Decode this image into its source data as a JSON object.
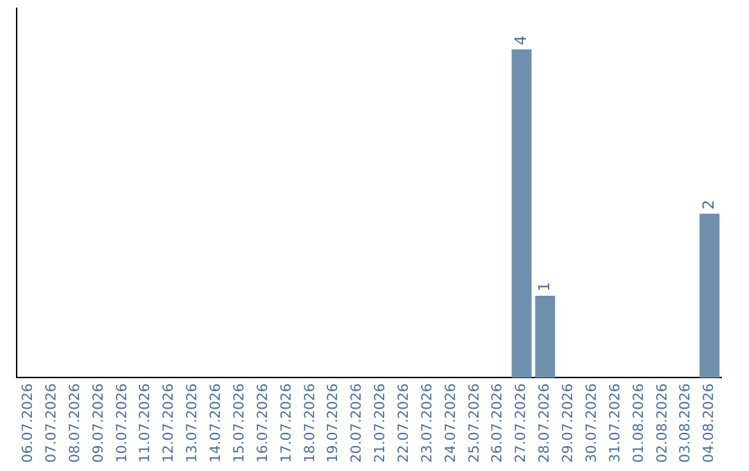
{
  "chart_data": {
    "type": "bar",
    "categories": [
      "06.07.2026",
      "07.07.2026",
      "08.07.2026",
      "09.07.2026",
      "10.07.2026",
      "11.07.2026",
      "12.07.2026",
      "13.07.2026",
      "14.07.2026",
      "15.07.2026",
      "16.07.2026",
      "17.07.2026",
      "18.07.2026",
      "19.07.2026",
      "20.07.2026",
      "21.07.2026",
      "22.07.2026",
      "23.07.2026",
      "24.07.2026",
      "25.07.2026",
      "26.07.2026",
      "27.07.2026",
      "28.07.2026",
      "29.07.2026",
      "30.07.2026",
      "31.07.2026",
      "01.08.2026",
      "02.08.2026",
      "03.08.2026",
      "04.08.2026"
    ],
    "values": [
      null,
      null,
      null,
      null,
      null,
      null,
      null,
      null,
      null,
      null,
      null,
      null,
      null,
      null,
      null,
      null,
      null,
      null,
      null,
      null,
      null,
      4,
      1,
      null,
      null,
      null,
      null,
      null,
      null,
      2
    ],
    "color": "#6f8fae",
    "data_labels": true,
    "grid": false,
    "legend": false
  }
}
